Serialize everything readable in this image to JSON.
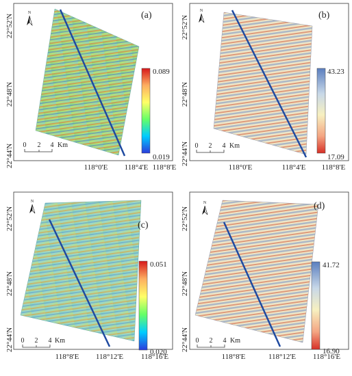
{
  "panels": [
    {
      "id": "a",
      "label": "(a)",
      "lon_ticks": [
        "118°0'E",
        "118°4'E",
        "118°8'E"
      ],
      "lat_ticks": [
        "22°52'N",
        "22°48'N",
        "22°44'N"
      ],
      "scalebar": {
        "ticks": [
          "0",
          "2",
          "4"
        ],
        "unit": "Km"
      },
      "colorbar": {
        "max": "0.089",
        "min": "0.019",
        "palette": "jet",
        "stops": [
          "#d7191c",
          "#fdae61",
          "#ffff66",
          "#66ff66",
          "#00ccff",
          "#2b3bdc"
        ]
      },
      "north": "N"
    },
    {
      "id": "b",
      "label": "(b)",
      "lon_ticks": [
        "118°0'E",
        "118°4'E",
        "118°8'E"
      ],
      "lat_ticks": [
        "22°52'N",
        "22°48'N",
        "22°44'N"
      ],
      "scalebar": {
        "ticks": [
          "0",
          "2",
          "4"
        ],
        "unit": "Km"
      },
      "colorbar": {
        "max": "43.23",
        "min": "17.09",
        "palette": "blue-yellow-red",
        "stops": [
          "#5b7fbf",
          "#c8d8e8",
          "#f7f0c0",
          "#f4a582",
          "#d73027"
        ]
      },
      "north": "N"
    },
    {
      "id": "c",
      "label": "(c)",
      "lon_ticks": [
        "118°8'E",
        "118°12'E",
        "118°16'E"
      ],
      "lat_ticks": [
        "22°52'N",
        "22°48'N",
        "22°44'N"
      ],
      "scalebar": {
        "ticks": [
          "0",
          "2",
          "4"
        ],
        "unit": "Km"
      },
      "colorbar": {
        "max": "0.051",
        "min": "0.020",
        "palette": "jet",
        "stops": [
          "#d7191c",
          "#fdae61",
          "#ffff66",
          "#66ff66",
          "#00ccff",
          "#2b3bdc"
        ]
      },
      "north": "N"
    },
    {
      "id": "d",
      "label": "(d)",
      "lon_ticks": [
        "118°8'E",
        "118°12'E",
        "118°16'E"
      ],
      "lat_ticks": [
        "22°52'N",
        "22°48'N",
        "22°44'N"
      ],
      "scalebar": {
        "ticks": [
          "0",
          "2",
          "4"
        ],
        "unit": "Km"
      },
      "colorbar": {
        "max": "41.72",
        "min": "16.90",
        "palette": "blue-yellow-red",
        "stops": [
          "#5b7fbf",
          "#c8d8e8",
          "#f7f0c0",
          "#f4a582",
          "#d73027"
        ]
      },
      "north": "N"
    }
  ]
}
